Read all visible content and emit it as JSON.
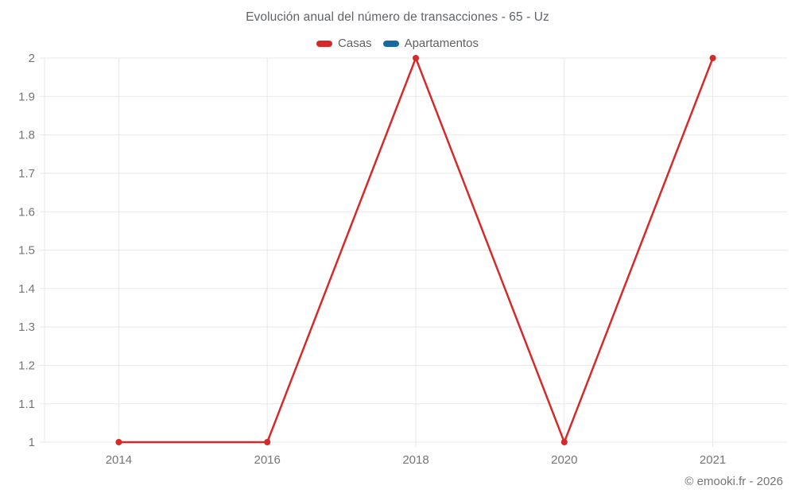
{
  "header": {
    "title": "Evolución anual del número de transacciones - 65 - Uz"
  },
  "legend": {
    "items": [
      {
        "label": "Casas",
        "color": "#d62a2a"
      },
      {
        "label": "Apartamentos",
        "color": "#17699f"
      }
    ]
  },
  "footer": {
    "credit": "© emooki.fr - 2026"
  },
  "chart_data": {
    "type": "line",
    "title": "Evolución anual del número de transacciones - 65 - Uz",
    "xlabel": "",
    "ylabel": "",
    "categories": [
      "2014",
      "2016",
      "2018",
      "2020",
      "2021"
    ],
    "series": [
      {
        "name": "Casas",
        "color": "#d62a2a",
        "values": [
          1,
          1,
          2,
          1,
          2
        ]
      },
      {
        "name": "Apartamentos",
        "color": "#17699f",
        "values": []
      }
    ],
    "ylim": [
      1,
      2
    ],
    "yticks": [
      {
        "value": 1,
        "label": "1"
      },
      {
        "value": 1.1,
        "label": "1.1"
      },
      {
        "value": 1.2,
        "label": "1.2"
      },
      {
        "value": 1.3,
        "label": "1.3"
      },
      {
        "value": 1.4,
        "label": "1.4"
      },
      {
        "value": 1.5,
        "label": "1.5"
      },
      {
        "value": 1.6,
        "label": "1.6"
      },
      {
        "value": 1.7,
        "label": "1.7"
      },
      {
        "value": 1.8,
        "label": "1.8"
      },
      {
        "value": 1.9,
        "label": "1.9"
      },
      {
        "value": 2,
        "label": "2"
      }
    ],
    "grid": true,
    "legend_position": "top"
  }
}
